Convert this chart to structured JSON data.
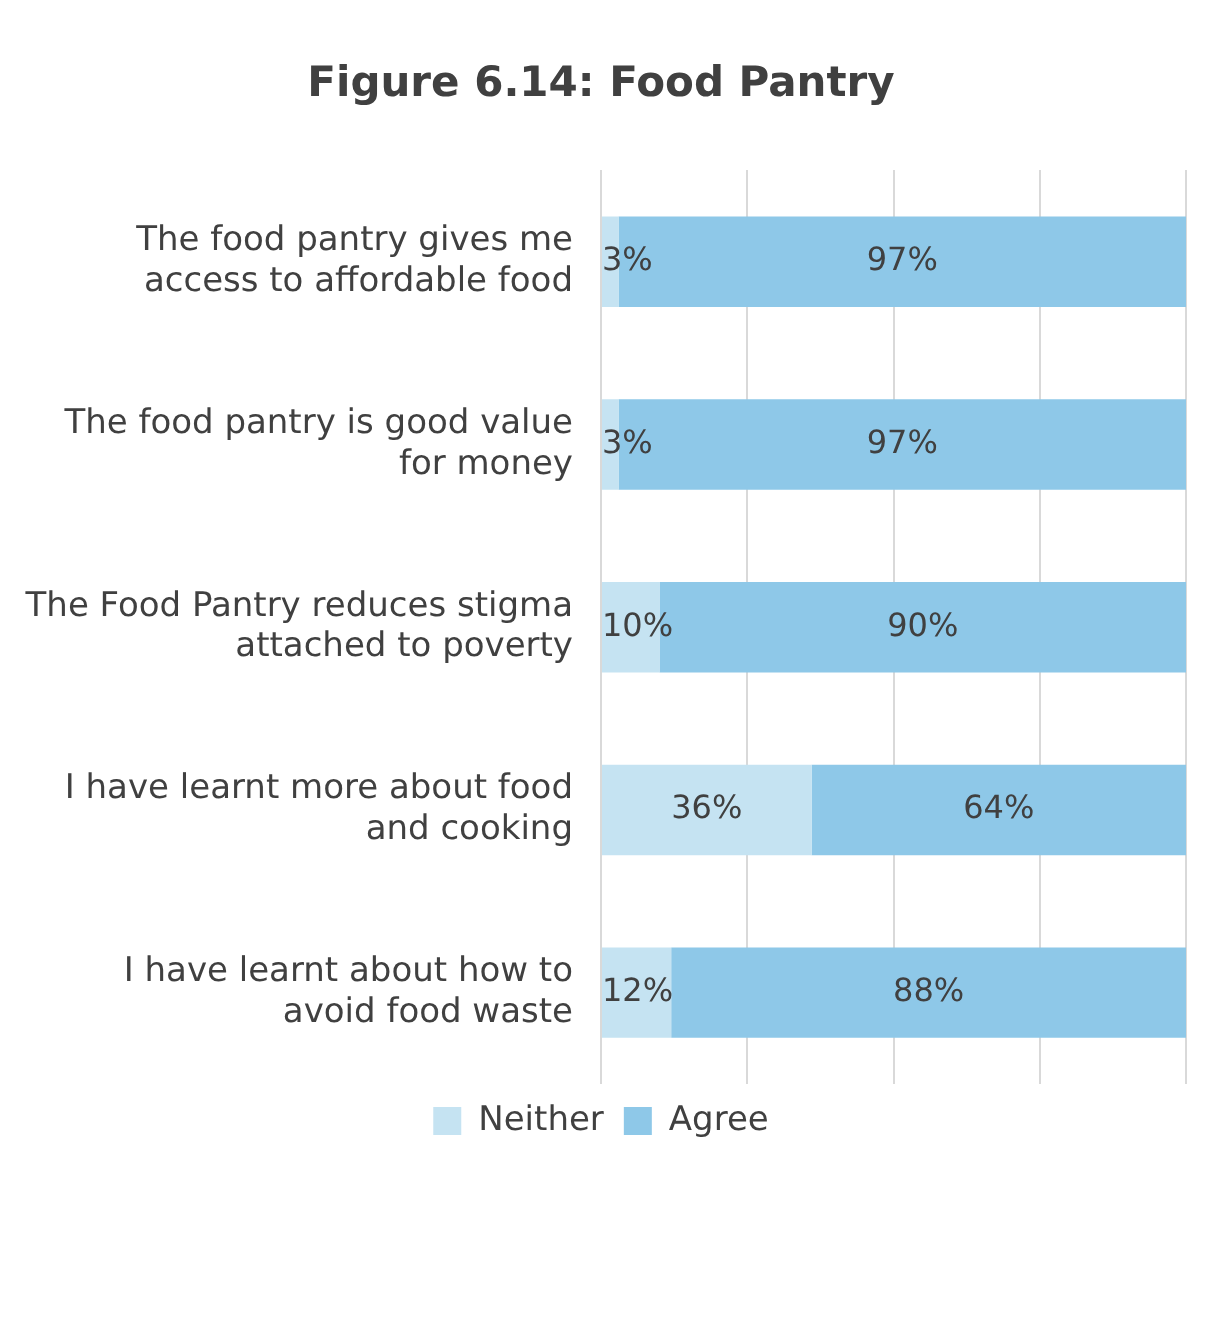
{
  "chart_data": {
    "type": "bar",
    "orientation": "horizontal",
    "stacked": true,
    "title": "Figure 6.14: Food Pantry",
    "categories": [
      "The food pantry gives me access to affordable food",
      "The food pantry is good value for money",
      "The Food Pantry reduces stigma attached to poverty",
      "I have learnt more about food and cooking",
      "I have learnt about how to avoid food waste"
    ],
    "series": [
      {
        "name": "Neither",
        "color": "#c5e3f2",
        "values": [
          3,
          3,
          10,
          36,
          12
        ],
        "value_labels": [
          "3%",
          "3%",
          "10%",
          "36%",
          "12%"
        ]
      },
      {
        "name": "Agree",
        "color": "#8ec8e8",
        "values": [
          97,
          97,
          90,
          64,
          88
        ],
        "value_labels": [
          "97%",
          "97%",
          "90%",
          "64%",
          "88%"
        ]
      }
    ],
    "xlim": [
      0,
      100
    ],
    "xticks": [
      {
        "value": 0,
        "label": null
      },
      {
        "value": 25,
        "label": null
      },
      {
        "value": 50,
        "label": null
      },
      {
        "value": 75,
        "label": null
      },
      {
        "value": 100,
        "label": null
      }
    ],
    "grid": "x",
    "tick_labels": "y",
    "legend": "bottom"
  }
}
